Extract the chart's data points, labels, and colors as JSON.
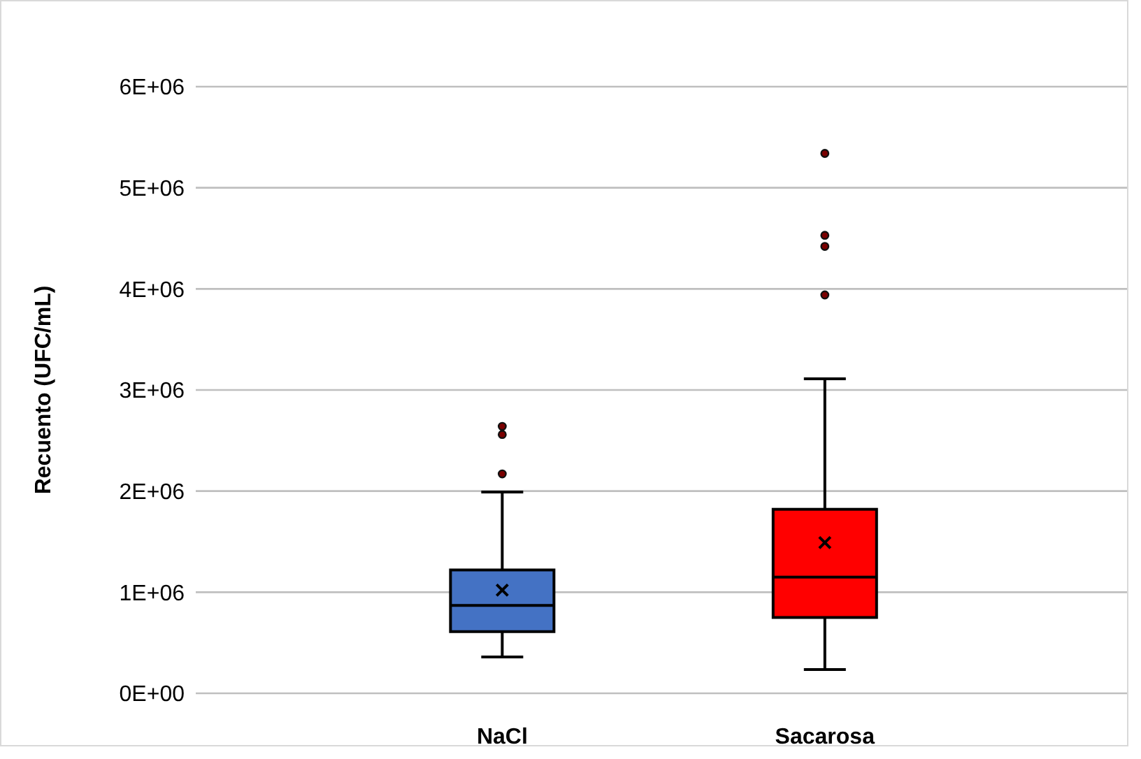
{
  "chart_data": {
    "type": "box",
    "ylabel": "Recuento (UFC/mL)",
    "categories": [
      "NaCl",
      "Sacarosa"
    ],
    "series": [
      {
        "color": "#4472c4",
        "boxes": [
          {
            "low": 360000,
            "q1": 610000,
            "median": 870000,
            "q3": 1220000,
            "high": 1990000,
            "mean": 1020000,
            "outliers": [
              2170000,
              2560000,
              2640000
            ]
          },
          null
        ]
      },
      {
        "color": "#ff0000",
        "boxes": [
          null,
          {
            "low": 235000,
            "q1": 750000,
            "median": 1150000,
            "q3": 1820000,
            "high": 3110000,
            "mean": 1490000,
            "outliers": [
              3940000,
              4420000,
              4530000,
              5340000
            ]
          }
        ]
      }
    ],
    "ylim": [
      0,
      6000000
    ],
    "yticks": [
      {
        "value": 0,
        "label": "0E+00"
      },
      {
        "value": 1000000,
        "label": "1E+06"
      },
      {
        "value": 2000000,
        "label": "2E+06"
      },
      {
        "value": 3000000,
        "label": "3E+06"
      },
      {
        "value": 4000000,
        "label": "4E+06"
      },
      {
        "value": 5000000,
        "label": "5E+06"
      },
      {
        "value": 6000000,
        "label": "6E+06"
      }
    ],
    "grid": "y",
    "marker": "circle"
  }
}
